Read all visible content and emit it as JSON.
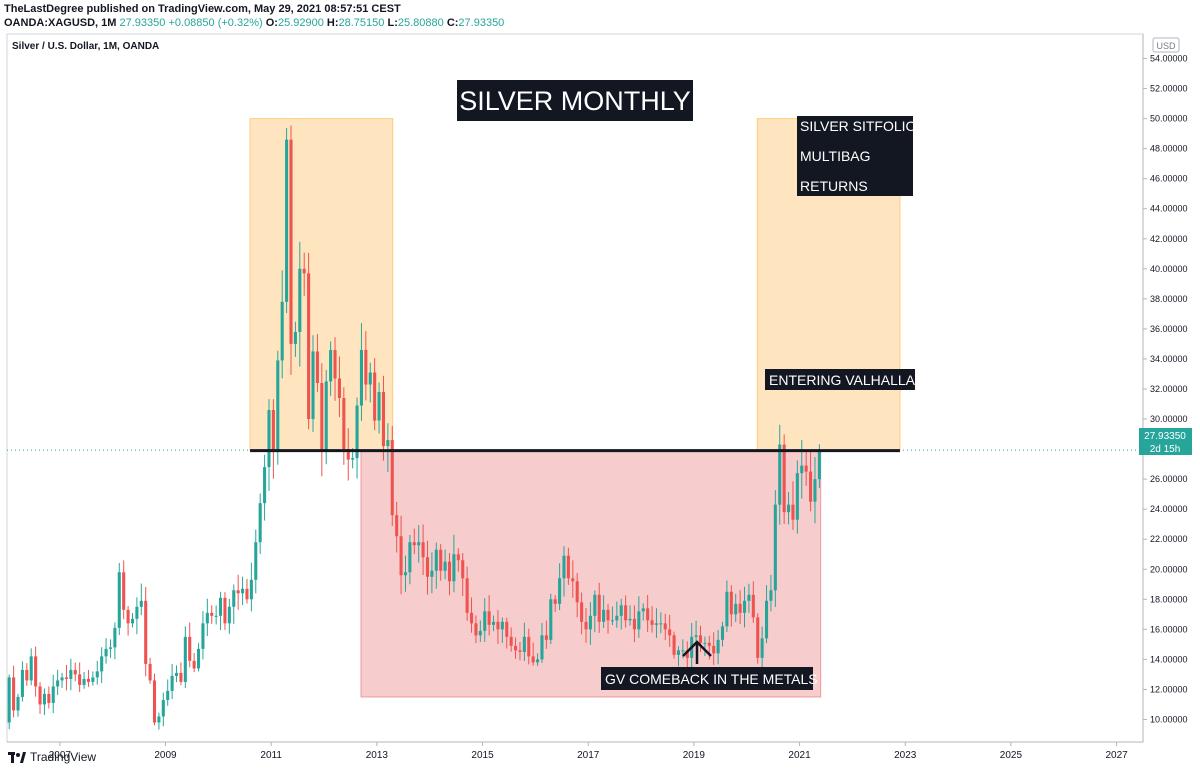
{
  "header": {
    "line1": "TheLastDegree published on TradingView.com, May 29, 2021 08:57:51 CEST",
    "symbol": "OANDA:XAGUSD, 1M",
    "last": "27.93350",
    "change": "+0.08850 (+0.32%)",
    "o_label": "O:",
    "o_value": "25.92900",
    "h_label": "H:",
    "h_value": "28.75150",
    "l_label": "L:",
    "l_value": "25.80880",
    "c_label": "C:",
    "c_value": "27.93350"
  },
  "footer": {
    "brand": "TradingView"
  },
  "chart_data": {
    "type": "candlestick",
    "title": "SILVER MONTHLY",
    "legend": "Silver / U.S. Dollar, 1M, OANDA",
    "currency": "USD",
    "x_range": [
      2006.0,
      2027.5
    ],
    "ylim": [
      8.5,
      55.5
    ],
    "x_ticks": [
      "2007",
      "2009",
      "2011",
      "2013",
      "2015",
      "2017",
      "2019",
      "2021",
      "2023",
      "2025",
      "2027"
    ],
    "y_ticks": [
      "10.00000",
      "12.00000",
      "14.00000",
      "16.00000",
      "18.00000",
      "20.00000",
      "22.00000",
      "24.00000",
      "26.00000",
      "28.00000",
      "30.00000",
      "32.00000",
      "34.00000",
      "36.00000",
      "38.00000",
      "40.00000",
      "42.00000",
      "44.00000",
      "46.00000",
      "48.00000",
      "50.00000",
      "52.00000",
      "54.00000"
    ],
    "price_tag": {
      "value": 27.9335,
      "label": "27.93350",
      "countdown": "2d 15h"
    },
    "closes": [
      12.8,
      10.6,
      11.5,
      13.3,
      12.6,
      14.2,
      12.2,
      11.0,
      11.7,
      11.1,
      12.2,
      12.6,
      12.8,
      12.7,
      13.3,
      13.0,
      12.3,
      12.7,
      12.5,
      12.8,
      13.2,
      14.2,
      14.7,
      14.8,
      16.1,
      19.8,
      17.3,
      16.4,
      16.7,
      17.5,
      17.9,
      13.7,
      12.6,
      9.8,
      10.2,
      11.3,
      11.9,
      12.9,
      13.1,
      12.5,
      15.5,
      13.9,
      13.4,
      14.7,
      16.4,
      17.1,
      16.9,
      16.9,
      18.1,
      16.4,
      17.5,
      18.6,
      18.4,
      18.7,
      18.0,
      19.3,
      21.8,
      24.4,
      26.8,
      30.6,
      27.8,
      33.9,
      37.8,
      48.6,
      35.0,
      35.8,
      40.0,
      39.7,
      30.0,
      34.5,
      32.4,
      27.9,
      32.5,
      34.6,
      32.7,
      31.4,
      28.0,
      27.3,
      27.4,
      30.9,
      34.6,
      32.3,
      33.1,
      29.9,
      31.8,
      28.2,
      28.6,
      23.6,
      22.2,
      19.6,
      19.8,
      21.8,
      21.6,
      21.8,
      20.8,
      19.5,
      19.9,
      21.3,
      19.9,
      20.5,
      19.2,
      21.0,
      20.6,
      19.4,
      17.1,
      16.4,
      15.6,
      15.9,
      17.2,
      16.3,
      16.5,
      16.0,
      16.5,
      15.5,
      14.9,
      14.6,
      14.5,
      15.5,
      14.2,
      13.8,
      14.0,
      15.6,
      15.3,
      18.0,
      17.7,
      19.4,
      20.9,
      19.4,
      19.2,
      17.8,
      16.5,
      16.0,
      16.9,
      18.3,
      16.5,
      17.3,
      16.6,
      16.6,
      16.9,
      17.6,
      16.6,
      16.7,
      16.0,
      17.2,
      17.4,
      16.6,
      16.3,
      16.4,
      16.4,
      16.0,
      15.6,
      14.3,
      14.6,
      14.6,
      14.1,
      15.5,
      15.6,
      15.1,
      15.1,
      14.9,
      14.4,
      15.3,
      16.2,
      18.5,
      17.0,
      17.7,
      17.1,
      17.9,
      18.3,
      16.8,
      14.1,
      15.4,
      17.9,
      18.6,
      24.3,
      28.3,
      23.8,
      24.3,
      23.3,
      26.4,
      26.9,
      26.5,
      24.5,
      26.0,
      27.9
    ],
    "annotations": [
      {
        "text": "SILVER SITFOLIO"
      },
      {
        "text": "MULTIBAG"
      },
      {
        "text": "RETURNS"
      },
      {
        "text": "ENTERING VALHALLA"
      },
      {
        "text": "GV COMEBACK IN THE METALS"
      }
    ],
    "zones": [
      {
        "name": "2011 peak zone",
        "x_start": 2010.6,
        "x_end": 2013.3,
        "y_low": 27.9,
        "y_high": 50.0,
        "color": "#ffcc80"
      },
      {
        "name": "consolidation zone",
        "x_start": 2012.7,
        "x_end": 2021.4,
        "y_low": 11.5,
        "y_high": 27.9,
        "color": "#ef9a9a"
      },
      {
        "name": "target zone",
        "x_start": 2020.2,
        "x_end": 2022.9,
        "y_low": 27.9,
        "y_high": 50.0,
        "color": "#ffcc80"
      }
    ],
    "resistance": {
      "value": 27.9,
      "x_start": 2010.6,
      "x_end": 2022.9
    },
    "colors": {
      "up": "#26a69a",
      "down": "#ef5350",
      "line": "#131722"
    }
  }
}
